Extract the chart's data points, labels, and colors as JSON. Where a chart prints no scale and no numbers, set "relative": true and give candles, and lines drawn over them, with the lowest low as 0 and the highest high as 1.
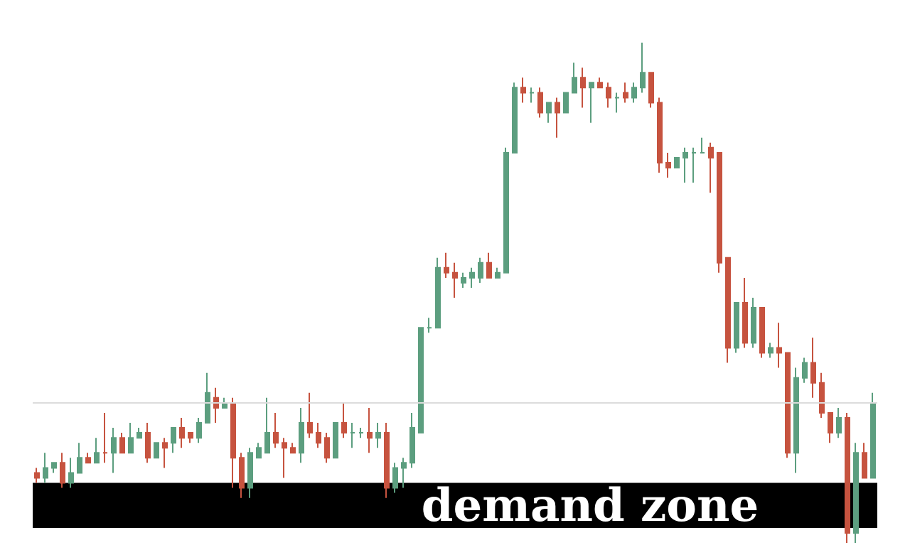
{
  "chart_data": {
    "type": "candlestick",
    "relative": true,
    "categories": [
      null,
      null,
      null,
      null,
      null,
      null,
      null,
      null,
      null,
      null,
      null,
      null,
      null,
      null,
      null,
      null,
      null,
      null,
      null,
      null,
      null,
      null,
      null,
      null,
      null,
      null,
      null,
      null,
      null,
      null,
      null,
      null,
      null,
      null,
      null,
      null,
      null,
      null,
      null,
      null,
      null,
      null,
      null,
      null,
      null,
      null,
      null,
      null,
      null,
      null,
      null,
      null,
      null,
      null,
      null,
      null,
      null,
      null,
      null,
      null,
      null,
      null,
      null,
      null,
      null,
      null,
      null,
      null,
      null,
      null,
      null,
      null,
      null,
      null,
      null,
      null,
      null,
      null,
      null,
      null,
      null,
      null,
      null,
      null,
      null,
      null,
      null,
      null,
      null,
      null,
      null,
      null,
      null,
      null,
      null,
      null,
      null,
      null,
      null
    ],
    "ohlc": [
      [
        0.14,
        0.15,
        0.12,
        0.13
      ],
      [
        0.13,
        0.18,
        0.12,
        0.15
      ],
      [
        0.15,
        0.16,
        0.14,
        0.16
      ],
      [
        0.16,
        0.18,
        0.11,
        0.12
      ],
      [
        0.12,
        0.17,
        0.11,
        0.14
      ],
      [
        0.14,
        0.2,
        0.14,
        0.17
      ],
      [
        0.17,
        0.18,
        0.16,
        0.16
      ],
      [
        0.16,
        0.21,
        0.16,
        0.18
      ],
      [
        0.18,
        0.26,
        0.16,
        0.18
      ],
      [
        0.18,
        0.23,
        0.14,
        0.21
      ],
      [
        0.21,
        0.22,
        0.18,
        0.18
      ],
      [
        0.18,
        0.24,
        0.18,
        0.21
      ],
      [
        0.21,
        0.23,
        0.21,
        0.22
      ],
      [
        0.22,
        0.24,
        0.16,
        0.17
      ],
      [
        0.17,
        0.2,
        0.17,
        0.2
      ],
      [
        0.2,
        0.21,
        0.15,
        0.19
      ],
      [
        0.2,
        0.23,
        0.18,
        0.23
      ],
      [
        0.23,
        0.25,
        0.19,
        0.21
      ],
      [
        0.22,
        0.22,
        0.2,
        0.21
      ],
      [
        0.21,
        0.25,
        0.2,
        0.24
      ],
      [
        0.24,
        0.34,
        0.24,
        0.3
      ],
      [
        0.29,
        0.31,
        0.24,
        0.27
      ],
      [
        0.27,
        0.29,
        0.27,
        0.28
      ],
      [
        0.28,
        0.29,
        0.11,
        0.17
      ],
      [
        0.17,
        0.18,
        0.09,
        0.11
      ],
      [
        0.11,
        0.19,
        0.09,
        0.18
      ],
      [
        0.17,
        0.2,
        0.17,
        0.19
      ],
      [
        0.18,
        0.29,
        0.18,
        0.22
      ],
      [
        0.22,
        0.26,
        0.19,
        0.2
      ],
      [
        0.2,
        0.21,
        0.13,
        0.19
      ],
      [
        0.19,
        0.2,
        0.18,
        0.18
      ],
      [
        0.18,
        0.27,
        0.16,
        0.24
      ],
      [
        0.24,
        0.3,
        0.21,
        0.22
      ],
      [
        0.22,
        0.24,
        0.19,
        0.2
      ],
      [
        0.21,
        0.22,
        0.16,
        0.17
      ],
      [
        0.17,
        0.24,
        0.17,
        0.24
      ],
      [
        0.24,
        0.28,
        0.21,
        0.22
      ],
      [
        0.22,
        0.24,
        0.19,
        0.22
      ],
      [
        0.22,
        0.23,
        0.21,
        0.22
      ],
      [
        0.22,
        0.27,
        0.18,
        0.21
      ],
      [
        0.21,
        0.24,
        0.19,
        0.22
      ],
      [
        0.22,
        0.24,
        0.09,
        0.11
      ],
      [
        0.11,
        0.16,
        0.1,
        0.15
      ],
      [
        0.15,
        0.17,
        0.11,
        0.16
      ],
      [
        0.16,
        0.26,
        0.15,
        0.23
      ],
      [
        0.22,
        0.43,
        0.22,
        0.43
      ],
      [
        0.43,
        0.45,
        0.42,
        0.43
      ],
      [
        0.43,
        0.57,
        0.43,
        0.55
      ],
      [
        0.55,
        0.58,
        0.53,
        0.54
      ],
      [
        0.54,
        0.56,
        0.49,
        0.53
      ],
      [
        0.52,
        0.54,
        0.51,
        0.53
      ],
      [
        0.53,
        0.55,
        0.51,
        0.54
      ],
      [
        0.53,
        0.57,
        0.52,
        0.56
      ],
      [
        0.56,
        0.58,
        0.53,
        0.53
      ],
      [
        0.53,
        0.55,
        0.53,
        0.54
      ],
      [
        0.54,
        0.79,
        0.54,
        0.78
      ],
      [
        0.78,
        0.92,
        0.78,
        0.91
      ],
      [
        0.91,
        0.93,
        0.88,
        0.9
      ],
      [
        0.9,
        0.91,
        0.88,
        0.9
      ],
      [
        0.9,
        0.91,
        0.85,
        0.86
      ],
      [
        0.86,
        0.88,
        0.84,
        0.88
      ],
      [
        0.88,
        0.89,
        0.81,
        0.86
      ],
      [
        0.86,
        0.9,
        0.86,
        0.9
      ],
      [
        0.9,
        0.96,
        0.9,
        0.93
      ],
      [
        0.93,
        0.95,
        0.87,
        0.91
      ],
      [
        0.91,
        0.92,
        0.84,
        0.92
      ],
      [
        0.92,
        0.93,
        0.91,
        0.91
      ],
      [
        0.91,
        0.92,
        0.87,
        0.89
      ],
      [
        0.89,
        0.9,
        0.86,
        0.89
      ],
      [
        0.9,
        0.92,
        0.88,
        0.89
      ],
      [
        0.89,
        0.92,
        0.88,
        0.91
      ],
      [
        0.91,
        1,
        0.9,
        0.94
      ],
      [
        0.94,
        0.94,
        0.87,
        0.88
      ],
      [
        0.88,
        0.89,
        0.74,
        0.76
      ],
      [
        0.76,
        0.78,
        0.73,
        0.75
      ],
      [
        0.75,
        0.77,
        0.75,
        0.77
      ],
      [
        0.77,
        0.79,
        0.72,
        0.78
      ],
      [
        0.78,
        0.79,
        0.72,
        0.78
      ],
      [
        0.78,
        0.81,
        0.78,
        0.78
      ],
      [
        0.79,
        0.8,
        0.7,
        0.77
      ],
      [
        0.78,
        0.78,
        0.54,
        0.56
      ],
      [
        0.57,
        0.57,
        0.36,
        0.39
      ],
      [
        0.39,
        0.48,
        0.38,
        0.48
      ],
      [
        0.48,
        0.53,
        0.39,
        0.4
      ],
      [
        0.4,
        0.49,
        0.39,
        0.47
      ],
      [
        0.47,
        0.47,
        0.37,
        0.38
      ],
      [
        0.38,
        0.4,
        0.37,
        0.39
      ],
      [
        0.39,
        0.44,
        0.35,
        0.38
      ],
      [
        0.38,
        0.38,
        0.17,
        0.18
      ],
      [
        0.18,
        0.35,
        0.14,
        0.33
      ],
      [
        0.33,
        0.37,
        0.32,
        0.36
      ],
      [
        0.36,
        0.41,
        0.29,
        0.32
      ],
      [
        0.32,
        0.34,
        0.25,
        0.26
      ],
      [
        0.26,
        0.26,
        0.2,
        0.22
      ],
      [
        0.22,
        0.27,
        0.21,
        0.25
      ],
      [
        0.25,
        0.26,
        0,
        0.02
      ],
      [
        0.02,
        0.2,
        0,
        0.18
      ],
      [
        0.18,
        0.2,
        0.13,
        0.13
      ],
      [
        0.13,
        0.3,
        0.13,
        0.28
      ]
    ],
    "colors": [
      "#c6533f",
      "#5c9e7f",
      "#5c9e7f",
      "#c6533f",
      "#5c9e7f",
      "#5c9e7f",
      "#c6533f",
      "#5c9e7f",
      "#c6533f",
      "#5c9e7f",
      "#c6533f",
      "#5c9e7f",
      "#5c9e7f",
      "#c6533f",
      "#5c9e7f",
      "#c6533f",
      "#5c9e7f",
      "#c6533f",
      "#c6533f",
      "#5c9e7f",
      "#5c9e7f",
      "#c6533f",
      "#5c9e7f",
      "#c6533f",
      "#c6533f",
      "#5c9e7f",
      "#5c9e7f",
      "#5c9e7f",
      "#c6533f",
      "#c6533f",
      "#c6533f",
      "#5c9e7f",
      "#c6533f",
      "#c6533f",
      "#c6533f",
      "#5c9e7f",
      "#c6533f",
      "#5c9e7f",
      "#5c9e7f",
      "#c6533f",
      "#5c9e7f",
      "#c6533f",
      "#5c9e7f",
      "#5c9e7f",
      "#5c9e7f",
      "#5c9e7f",
      "#5c9e7f",
      "#5c9e7f",
      "#c6533f",
      "#c6533f",
      "#5c9e7f",
      "#5c9e7f",
      "#5c9e7f",
      "#c6533f",
      "#5c9e7f",
      "#5c9e7f",
      "#5c9e7f",
      "#c6533f",
      "#5c9e7f",
      "#c6533f",
      "#5c9e7f",
      "#c6533f",
      "#5c9e7f",
      "#5c9e7f",
      "#c6533f",
      "#5c9e7f",
      "#c6533f",
      "#c6533f",
      "#5c9e7f",
      "#c6533f",
      "#5c9e7f",
      "#5c9e7f",
      "#c6533f",
      "#c6533f",
      "#c6533f",
      "#5c9e7f",
      "#5c9e7f",
      "#5c9e7f",
      "#5c9e7f",
      "#c6533f",
      "#c6533f",
      "#c6533f",
      "#5c9e7f",
      "#c6533f",
      "#5c9e7f",
      "#c6533f",
      "#5c9e7f",
      "#c6533f",
      "#c6533f",
      "#5c9e7f",
      "#5c9e7f",
      "#c6533f",
      "#c6533f",
      "#c6533f",
      "#5c9e7f",
      "#c6533f",
      "#5c9e7f",
      "#c6533f",
      "#5c9e7f"
    ],
    "ref_lines": [
      {
        "axis": "y",
        "value": 0.28,
        "color": "#dcdcdc"
      }
    ],
    "bands": [
      {
        "axis": "y",
        "from": 0.03,
        "to": 0.12,
        "label": "demand zone",
        "color": "#000000"
      }
    ]
  }
}
